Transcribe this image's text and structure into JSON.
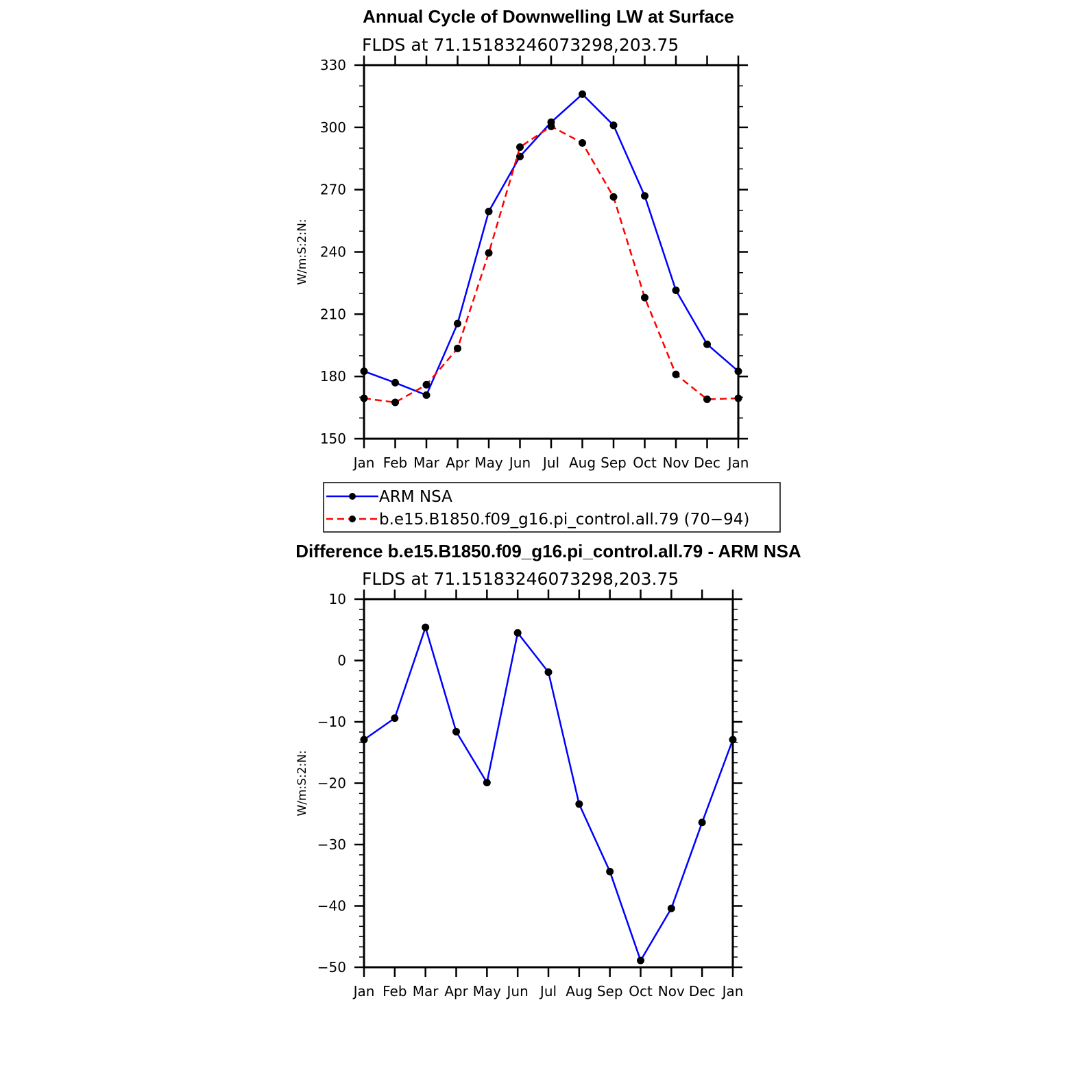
{
  "chart_data": [
    {
      "type": "line",
      "title": "Annual Cycle of Downwelling LW at Surface",
      "subtitle": "FLDS at 71.15183246073298,203.75",
      "ylabel": "W/m:S:2:N:",
      "xlabel": "",
      "categories": [
        "Jan",
        "Feb",
        "Mar",
        "Apr",
        "May",
        "Jun",
        "Jul",
        "Aug",
        "Sep",
        "Oct",
        "Nov",
        "Dec",
        "Jan"
      ],
      "ylim": [
        150,
        330
      ],
      "yticks": [
        "150",
        "180",
        "210",
        "240",
        "270",
        "300",
        "330"
      ],
      "grid": false,
      "legend_position": "bottom",
      "series": [
        {
          "name": "ARM NSA",
          "color": "#0000ff",
          "dash": "solid",
          "values": [
            182.5,
            177,
            171,
            205.5,
            259.5,
            286,
            302.5,
            316,
            301,
            267,
            221.5,
            195.5,
            182.5
          ]
        },
        {
          "name": "b.e15.B1850.f09_g16.pi_control.all.79 (70−94)",
          "color": "#ff0000",
          "dash": "dashed",
          "values": [
            169.5,
            167.5,
            176,
            193.5,
            239.5,
            290.5,
            300.5,
            292.5,
            266.5,
            218,
            181,
            169,
            169.5
          ]
        }
      ]
    },
    {
      "type": "line",
      "title": "Difference b.e15.B1850.f09_g16.pi_control.all.79 - ARM NSA",
      "subtitle": "FLDS at 71.15183246073298,203.75",
      "ylabel": "W/m:S:2:N:",
      "xlabel": "",
      "categories": [
        "Jan",
        "Feb",
        "Mar",
        "Apr",
        "May",
        "Jun",
        "Jul",
        "Aug",
        "Sep",
        "Oct",
        "Nov",
        "Dec",
        "Jan"
      ],
      "ylim": [
        -50,
        10
      ],
      "yticks": [
        "−50",
        "−40",
        "−30",
        "−20",
        "−10",
        "0",
        "10"
      ],
      "grid": false,
      "series": [
        {
          "color": "#0000ff",
          "dash": "solid",
          "values": [
            -12.9,
            -9.4,
            5.4,
            -11.6,
            -19.9,
            4.5,
            -1.9,
            -23.4,
            -34.4,
            -48.9,
            -40.4,
            -26.4,
            -12.9
          ]
        }
      ]
    }
  ]
}
